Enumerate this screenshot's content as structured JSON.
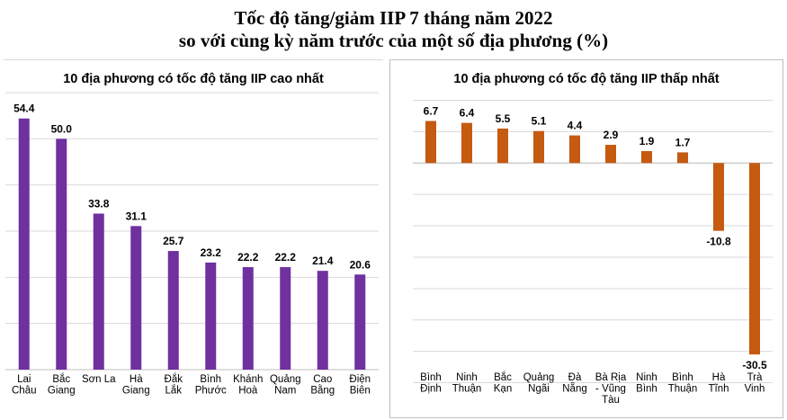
{
  "title_line1": "Tốc độ tăng/giảm IIP 7 tháng năm 2022",
  "title_line2": "so với cùng kỳ năm trước của một số địa phương (%)",
  "chart_data": [
    {
      "type": "bar",
      "title": "10 địa phương có tốc độ tăng IIP cao nhất",
      "categories": [
        [
          "Lai",
          "Châu"
        ],
        [
          "Bắc",
          "Giang"
        ],
        [
          "Sơn La"
        ],
        [
          "Hà",
          "Giang"
        ],
        [
          "Đắk",
          "Lắk"
        ],
        [
          "Bình",
          "Phước"
        ],
        [
          "Khánh",
          "Hoà"
        ],
        [
          "Quảng",
          "Nam"
        ],
        [
          "Cao",
          "Bằng"
        ],
        [
          "Điện",
          "Biên"
        ]
      ],
      "values": [
        54.4,
        50.0,
        33.8,
        31.1,
        25.7,
        23.2,
        22.2,
        22.2,
        21.4,
        20.6
      ],
      "labels": [
        "54.4",
        "50.0",
        "33.8",
        "31.1",
        "25.7",
        "23.2",
        "22.2",
        "22.2",
        "21.4",
        "20.6"
      ],
      "color": "#7030a0",
      "ylim": [
        0,
        60
      ],
      "grid": true
    },
    {
      "type": "bar",
      "title": "10 địa phương có tốc độ tăng IIP thấp nhất",
      "categories": [
        [
          "Bình",
          "Định"
        ],
        [
          "Ninh",
          "Thuận"
        ],
        [
          "Bắc",
          "Kạn"
        ],
        [
          "Quảng",
          "Ngãi"
        ],
        [
          "Đà",
          "Nẵng"
        ],
        [
          "Bà Rịa",
          "- Vũng",
          "Tàu"
        ],
        [
          "Ninh",
          "Bình"
        ],
        [
          "Bình",
          "Thuận"
        ],
        [
          "Hà",
          "Tĩnh"
        ],
        [
          "Trà",
          "Vinh"
        ]
      ],
      "values": [
        6.7,
        6.4,
        5.5,
        5.1,
        4.4,
        2.9,
        1.9,
        1.7,
        -10.8,
        -30.5
      ],
      "labels": [
        "6.7",
        "6.4",
        "5.5",
        "5.1",
        "4.4",
        "2.9",
        "1.9",
        "1.7",
        "-10.8",
        "-30.5"
      ],
      "color": "#c55a11",
      "ylim": [
        -35,
        10
      ],
      "grid": true
    }
  ]
}
